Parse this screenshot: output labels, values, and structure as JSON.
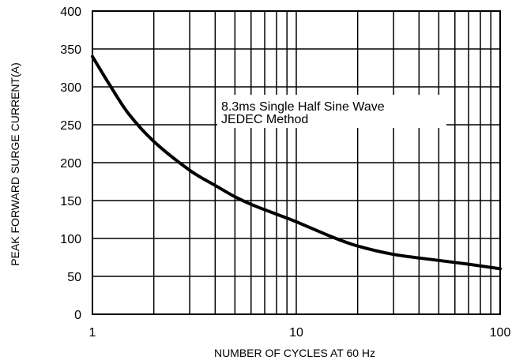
{
  "chart_data": {
    "type": "line",
    "title": "",
    "xlabel": "NUMBER OF CYCLES AT 60 Hz",
    "ylabel": "PEAK FORWARD SURGE CURRENT(A)",
    "x_scale": "log",
    "xlim": [
      1,
      100
    ],
    "ylim": [
      0,
      400
    ],
    "x_ticks": [
      1,
      10,
      100
    ],
    "x_tick_labels": [
      "1",
      "10",
      "100"
    ],
    "y_ticks": [
      0,
      50,
      100,
      150,
      200,
      250,
      300,
      350,
      400
    ],
    "y_tick_labels": [
      "0",
      "50",
      "100",
      "150",
      "200",
      "250",
      "300",
      "350",
      "400"
    ],
    "grid": true,
    "annotation": [
      "8.3ms Single Half Sine Wave",
      "JEDEC Method"
    ],
    "series": [
      {
        "x": [
          1,
          1.2,
          1.5,
          2,
          3,
          4,
          5,
          6,
          8,
          10,
          15,
          20,
          30,
          50,
          70,
          100
        ],
        "y": [
          340,
          305,
          265,
          228,
          190,
          170,
          155,
          145,
          132,
          122,
          102,
          90,
          79,
          71,
          66,
          60
        ]
      }
    ],
    "line_color": "#000000"
  }
}
